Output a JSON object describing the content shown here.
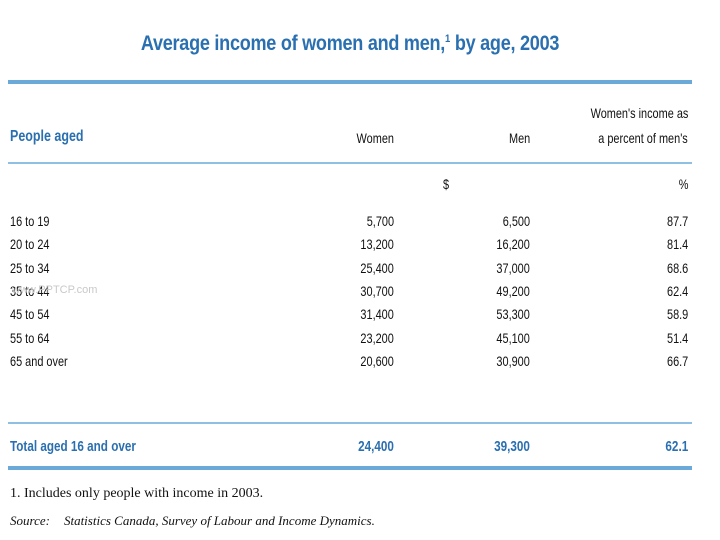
{
  "title": {
    "text": "Average income of women and men,",
    "sup": "1",
    "suffix": " by age, 2003"
  },
  "header": {
    "people_aged": "People aged",
    "women": "Women",
    "men": "Men",
    "percent_line1": "Women's income as",
    "percent_line2": "a percent of men's",
    "unit_dollar": "$",
    "unit_percent": "%"
  },
  "rows": [
    {
      "age": "16 to 19",
      "women": "5,700",
      "men": "6,500",
      "percent": "87.7"
    },
    {
      "age": "20 to 24",
      "women": "13,200",
      "men": "16,200",
      "percent": "81.4"
    },
    {
      "age": "25 to 34",
      "women": "25,400",
      "men": "37,000",
      "percent": "68.6"
    },
    {
      "age": "35 to 44",
      "women": "30,700",
      "men": "49,200",
      "percent": "62.4"
    },
    {
      "age": "45 to 54",
      "women": "31,400",
      "men": "53,300",
      "percent": "58.9"
    },
    {
      "age": "55 to 64",
      "women": "23,200",
      "men": "45,100",
      "percent": "51.4"
    },
    {
      "age": "65 and over",
      "women": "20,600",
      "men": "30,900",
      "percent": "66.7"
    }
  ],
  "total": {
    "age": "Total aged 16 and over",
    "women": "24,400",
    "men": "39,300",
    "percent": "62.1"
  },
  "footnote": "1.   Includes only people with income in 2003.",
  "source": {
    "label": "Source:",
    "text": "Statistics Canada, Survey of Labour and Income Dynamics."
  },
  "watermark": "www.PPTCP.com",
  "colors": {
    "accent": "#2a6fb0",
    "rule": "#6aa9d8"
  }
}
